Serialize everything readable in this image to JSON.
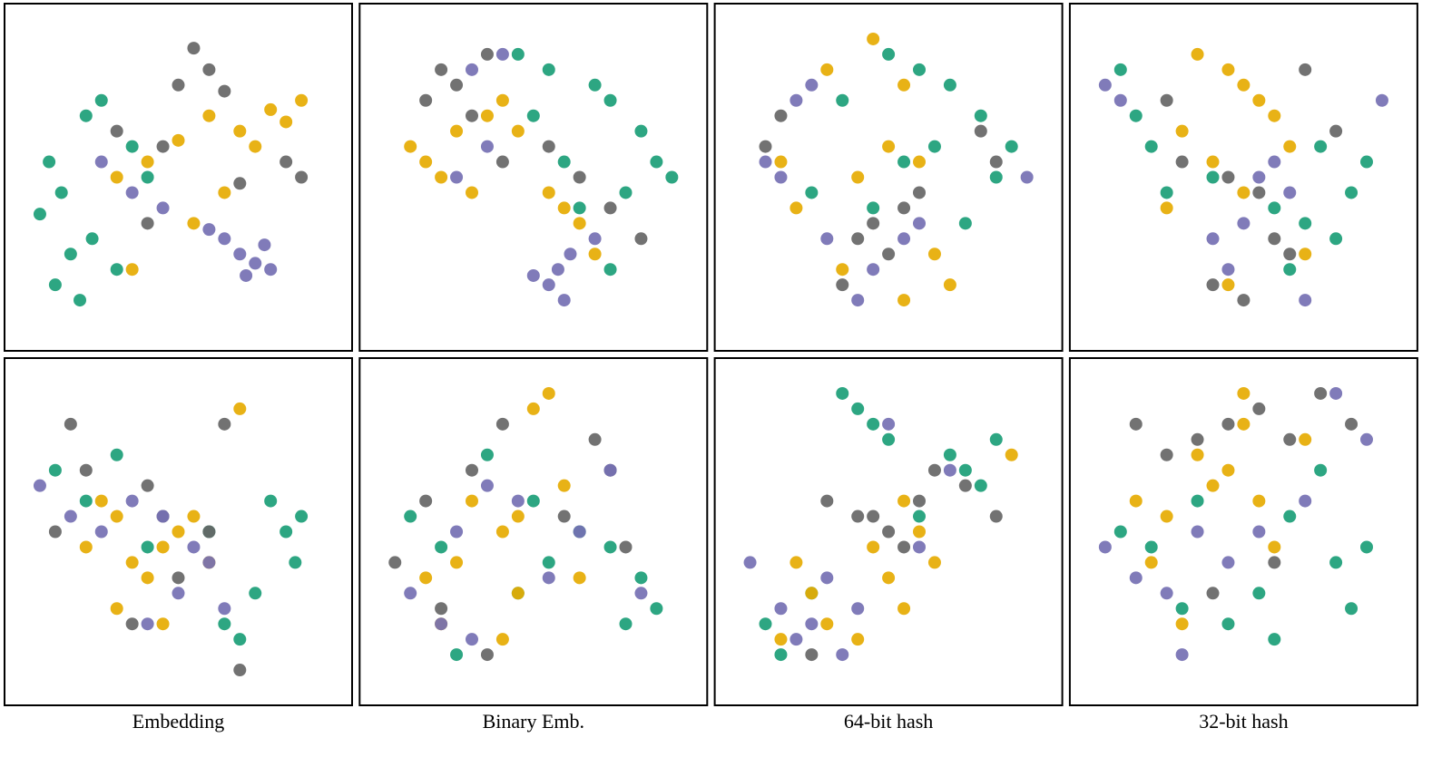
{
  "chart_data": [
    {
      "type": "scatter",
      "xlim": [
        0,
        100
      ],
      "ylim": [
        0,
        100
      ],
      "series": [
        {
          "color": "#1b9e77",
          "x": [
            8,
            12,
            5,
            20,
            25,
            15,
            30,
            10,
            35,
            22,
            18,
            40
          ],
          "values": [
            55,
            45,
            38,
            70,
            75,
            25,
            20,
            15,
            60,
            30,
            10,
            50
          ]
        },
        {
          "color": "#e6ab02",
          "x": [
            60,
            70,
            80,
            85,
            75,
            50,
            40,
            30,
            65,
            90,
            35,
            55
          ],
          "values": [
            70,
            65,
            72,
            68,
            60,
            62,
            55,
            50,
            45,
            75,
            20,
            35
          ]
        },
        {
          "color": "#666666",
          "x": [
            55,
            60,
            50,
            65,
            45,
            85,
            90,
            70,
            40,
            30
          ],
          "values": [
            92,
            85,
            80,
            78,
            60,
            55,
            50,
            48,
            35,
            65
          ]
        },
        {
          "color": "#7570b3",
          "x": [
            70,
            75,
            78,
            65,
            72,
            60,
            45,
            35,
            80,
            25
          ],
          "values": [
            25,
            22,
            28,
            30,
            18,
            33,
            40,
            45,
            20,
            55
          ]
        }
      ]
    },
    {
      "type": "scatter",
      "xlim": [
        0,
        100
      ],
      "ylim": [
        0,
        100
      ],
      "series": [
        {
          "color": "#1b9e77",
          "x": [
            45,
            55,
            70,
            75,
            85,
            90,
            80,
            65,
            60,
            50,
            95,
            75
          ],
          "values": [
            90,
            85,
            80,
            75,
            65,
            55,
            45,
            40,
            55,
            70,
            50,
            20
          ]
        },
        {
          "color": "#e6ab02",
          "x": [
            10,
            15,
            20,
            25,
            35,
            40,
            45,
            30,
            65,
            70,
            60,
            55
          ],
          "values": [
            60,
            55,
            50,
            65,
            70,
            75,
            65,
            45,
            35,
            25,
            40,
            45
          ]
        },
        {
          "color": "#666666",
          "x": [
            20,
            25,
            15,
            30,
            35,
            55,
            65,
            75,
            85,
            40
          ],
          "values": [
            85,
            80,
            75,
            70,
            90,
            60,
            50,
            40,
            30,
            55
          ]
        },
        {
          "color": "#7570b3",
          "x": [
            55,
            60,
            58,
            62,
            50,
            40,
            30,
            35,
            70,
            25
          ],
          "values": [
            15,
            10,
            20,
            25,
            18,
            90,
            85,
            60,
            30,
            50
          ]
        }
      ]
    },
    {
      "type": "scatter",
      "xlim": [
        0,
        100
      ],
      "ylim": [
        0,
        100
      ],
      "series": [
        {
          "color": "#1b9e77",
          "x": [
            50,
            60,
            70,
            65,
            80,
            85,
            55,
            75,
            45,
            35,
            90,
            25
          ],
          "values": [
            90,
            85,
            80,
            60,
            70,
            50,
            55,
            35,
            40,
            75,
            60,
            45
          ]
        },
        {
          "color": "#e6ab02",
          "x": [
            45,
            55,
            50,
            60,
            40,
            35,
            20,
            65,
            70,
            55,
            30,
            15
          ],
          "values": [
            95,
            80,
            60,
            55,
            50,
            20,
            40,
            25,
            15,
            10,
            85,
            55
          ]
        },
        {
          "color": "#666666",
          "x": [
            10,
            15,
            40,
            45,
            50,
            55,
            35,
            80,
            85,
            60
          ],
          "values": [
            60,
            70,
            30,
            35,
            25,
            40,
            15,
            65,
            55,
            45
          ]
        },
        {
          "color": "#7570b3",
          "x": [
            20,
            25,
            15,
            30,
            45,
            55,
            60,
            40,
            95,
            10
          ],
          "values": [
            75,
            80,
            50,
            30,
            20,
            30,
            35,
            10,
            50,
            55
          ]
        }
      ]
    },
    {
      "type": "scatter",
      "xlim": [
        0,
        100
      ],
      "ylim": [
        0,
        100
      ],
      "series": [
        {
          "color": "#1b9e77",
          "x": [
            10,
            15,
            20,
            25,
            60,
            70,
            80,
            85,
            90,
            75,
            65,
            40
          ],
          "values": [
            85,
            70,
            60,
            45,
            40,
            35,
            30,
            45,
            55,
            60,
            20,
            50
          ]
        },
        {
          "color": "#e6ab02",
          "x": [
            35,
            45,
            50,
            55,
            60,
            65,
            40,
            30,
            50,
            70,
            45,
            25
          ],
          "values": [
            90,
            85,
            80,
            75,
            70,
            60,
            55,
            65,
            45,
            25,
            15,
            40
          ]
        },
        {
          "color": "#666666",
          "x": [
            25,
            30,
            45,
            55,
            60,
            65,
            40,
            70,
            80,
            50
          ],
          "values": [
            75,
            55,
            50,
            45,
            30,
            25,
            15,
            85,
            65,
            10
          ]
        },
        {
          "color": "#7570b3",
          "x": [
            5,
            10,
            55,
            60,
            65,
            50,
            45,
            70,
            95,
            40
          ],
          "values": [
            80,
            75,
            50,
            55,
            45,
            35,
            20,
            10,
            75,
            30
          ]
        }
      ]
    },
    {
      "type": "scatter",
      "xlim": [
        0,
        100
      ],
      "ylim": [
        0,
        100
      ],
      "xlabel": "Embedding",
      "series": [
        {
          "color": "#1b9e77",
          "x": [
            10,
            20,
            30,
            80,
            85,
            90,
            88,
            75,
            65,
            70,
            60,
            40
          ],
          "values": [
            70,
            60,
            75,
            60,
            50,
            55,
            40,
            30,
            20,
            15,
            50,
            45
          ]
        },
        {
          "color": "#e6ab02",
          "x": [
            25,
            30,
            35,
            40,
            45,
            50,
            55,
            60,
            20,
            30,
            45,
            70
          ],
          "values": [
            60,
            55,
            40,
            35,
            45,
            50,
            55,
            40,
            45,
            25,
            20,
            90
          ]
        },
        {
          "color": "#666666",
          "x": [
            15,
            20,
            40,
            45,
            50,
            60,
            65,
            35,
            10,
            70
          ],
          "values": [
            85,
            70,
            65,
            55,
            35,
            50,
            85,
            20,
            50,
            5
          ]
        },
        {
          "color": "#7570b3",
          "x": [
            5,
            15,
            25,
            35,
            45,
            55,
            60,
            65,
            50,
            40
          ],
          "values": [
            65,
            55,
            50,
            60,
            55,
            45,
            40,
            25,
            30,
            20
          ]
        }
      ]
    },
    {
      "type": "scatter",
      "xlim": [
        0,
        100
      ],
      "ylim": [
        0,
        100
      ],
      "xlabel": "Binary Emb.",
      "series": [
        {
          "color": "#1b9e77",
          "x": [
            10,
            20,
            35,
            50,
            65,
            75,
            85,
            90,
            80,
            55,
            25,
            45
          ],
          "values": [
            55,
            45,
            75,
            60,
            50,
            45,
            35,
            25,
            20,
            40,
            10,
            30
          ]
        },
        {
          "color": "#e6ab02",
          "x": [
            15,
            25,
            30,
            40,
            45,
            50,
            55,
            60,
            20,
            40,
            45,
            65
          ],
          "values": [
            35,
            40,
            60,
            50,
            55,
            90,
            95,
            65,
            20,
            15,
            30,
            35
          ]
        },
        {
          "color": "#666666",
          "x": [
            5,
            15,
            20,
            30,
            40,
            60,
            70,
            80,
            75,
            35
          ],
          "values": [
            40,
            60,
            25,
            70,
            85,
            55,
            80,
            45,
            70,
            10
          ]
        },
        {
          "color": "#7570b3",
          "x": [
            10,
            20,
            25,
            35,
            45,
            55,
            65,
            75,
            85,
            30
          ],
          "values": [
            30,
            20,
            50,
            65,
            60,
            35,
            50,
            70,
            30,
            15
          ]
        }
      ]
    },
    {
      "type": "scatter",
      "xlim": [
        0,
        100
      ],
      "ylim": [
        0,
        100
      ],
      "xlabel": "64-bit hash",
      "series": [
        {
          "color": "#1b9e77",
          "x": [
            35,
            40,
            45,
            50,
            70,
            75,
            80,
            85,
            10,
            15,
            25,
            60
          ],
          "values": [
            95,
            90,
            85,
            80,
            75,
            70,
            65,
            80,
            20,
            10,
            30,
            55
          ]
        },
        {
          "color": "#e6ab02",
          "x": [
            20,
            25,
            30,
            45,
            50,
            55,
            60,
            65,
            40,
            15,
            55,
            90
          ],
          "values": [
            40,
            30,
            20,
            45,
            35,
            25,
            50,
            40,
            15,
            15,
            60,
            75
          ]
        },
        {
          "color": "#666666",
          "x": [
            30,
            40,
            45,
            50,
            55,
            60,
            65,
            75,
            25,
            85
          ],
          "values": [
            60,
            55,
            55,
            50,
            45,
            60,
            70,
            65,
            10,
            55
          ]
        },
        {
          "color": "#7570b3",
          "x": [
            5,
            15,
            20,
            25,
            30,
            35,
            40,
            60,
            70,
            50
          ],
          "values": [
            40,
            25,
            15,
            20,
            35,
            10,
            25,
            45,
            70,
            85
          ]
        }
      ]
    },
    {
      "type": "scatter",
      "xlim": [
        0,
        100
      ],
      "ylim": [
        0,
        100
      ],
      "xlabel": "32-bit hash",
      "series": [
        {
          "color": "#1b9e77",
          "x": [
            10,
            20,
            30,
            45,
            55,
            65,
            75,
            80,
            85,
            90,
            35,
            60
          ],
          "values": [
            50,
            45,
            25,
            20,
            30,
            55,
            70,
            40,
            25,
            45,
            60,
            15
          ]
        },
        {
          "color": "#e6ab02",
          "x": [
            15,
            20,
            25,
            35,
            40,
            45,
            50,
            55,
            60,
            70,
            30,
            50
          ],
          "values": [
            60,
            40,
            55,
            75,
            65,
            70,
            85,
            60,
            45,
            80,
            20,
            95
          ]
        },
        {
          "color": "#666666",
          "x": [
            15,
            25,
            35,
            45,
            55,
            65,
            75,
            85,
            40,
            60
          ],
          "values": [
            85,
            75,
            80,
            85,
            90,
            80,
            95,
            85,
            30,
            40
          ]
        },
        {
          "color": "#7570b3",
          "x": [
            5,
            15,
            25,
            35,
            45,
            55,
            70,
            80,
            90,
            30
          ],
          "values": [
            45,
            35,
            30,
            50,
            40,
            50,
            60,
            95,
            80,
            10
          ]
        }
      ]
    }
  ]
}
